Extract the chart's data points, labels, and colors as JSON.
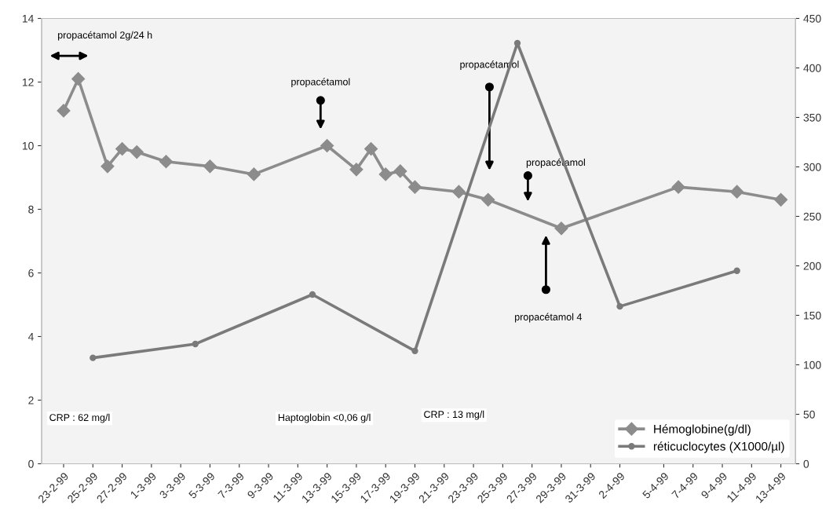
{
  "chart_data": {
    "type": "line",
    "ylim": [
      0,
      14
    ],
    "yticks": [
      0,
      2,
      4,
      6,
      8,
      10,
      12,
      14
    ],
    "y2lim": [
      0,
      450
    ],
    "y2ticks": [
      0,
      50,
      100,
      150,
      200,
      250,
      300,
      350,
      400,
      450
    ],
    "xlim": [
      "1999-02-21T12:00",
      "1999-04-14"
    ],
    "xticks": [
      {
        "value": "1999-02-23",
        "label": "23-2-99"
      },
      {
        "value": "1999-02-25",
        "label": "25-2-99"
      },
      {
        "value": "1999-02-27",
        "label": "27-2-99"
      },
      {
        "value": "1999-03-01",
        "label": "1-3-99"
      },
      {
        "value": "1999-03-03",
        "label": "3-3-99"
      },
      {
        "value": "1999-03-05",
        "label": "5-3-99"
      },
      {
        "value": "1999-03-07",
        "label": "7-3-99"
      },
      {
        "value": "1999-03-09",
        "label": "9-3-99"
      },
      {
        "value": "1999-03-11",
        "label": "11-3-99"
      },
      {
        "value": "1999-03-13",
        "label": "13-3-99"
      },
      {
        "value": "1999-03-15",
        "label": "15-3-99"
      },
      {
        "value": "1999-03-17",
        "label": "17-3-99"
      },
      {
        "value": "1999-03-19",
        "label": "19-3-99"
      },
      {
        "value": "1999-03-21",
        "label": "21-3-99"
      },
      {
        "value": "1999-03-23",
        "label": "23-3-99"
      },
      {
        "value": "1999-03-25",
        "label": "25-3-99"
      },
      {
        "value": "1999-03-27",
        "label": "27-3-99"
      },
      {
        "value": "1999-03-29",
        "label": "29-3-99"
      },
      {
        "value": "1999-03-31",
        "label": "31-3-99"
      },
      {
        "value": "1999-04-02",
        "label": "2-4-99"
      },
      {
        "value": "1999-04-05",
        "label": "5-4-99"
      },
      {
        "value": "1999-04-07",
        "label": "7-4-99"
      },
      {
        "value": "1999-04-09",
        "label": "9-4-99"
      },
      {
        "value": "1999-04-11",
        "label": "11-4-99"
      },
      {
        "value": "1999-04-13",
        "label": "13-4-99"
      }
    ],
    "series": [
      {
        "name": "Hémoglobine(g/dl)",
        "color": "#8c8c8c",
        "marker": "diamond",
        "x": [
          "1999-02-23",
          "1999-02-24",
          "1999-02-26",
          "1999-02-27",
          "1999-02-28",
          "1999-03-02",
          "1999-03-05",
          "1999-03-08",
          "1999-03-13",
          "1999-03-15",
          "1999-03-16",
          "1999-03-17",
          "1999-03-18",
          "1999-03-19",
          "1999-03-22",
          "1999-03-24",
          "1999-03-29",
          "1999-04-06",
          "1999-04-10",
          "1999-04-13"
        ],
        "values": [
          11.1,
          12.1,
          9.35,
          9.9,
          9.8,
          9.5,
          9.35,
          9.1,
          10.0,
          9.25,
          9.9,
          9.1,
          9.2,
          8.7,
          8.55,
          8.3,
          7.4,
          8.7,
          8.55,
          8.3
        ]
      },
      {
        "name": "réticuclocytes (X1000/µl)",
        "color": "#7a7a7a",
        "marker": "circle",
        "axis": "y2",
        "x": [
          "1999-02-25",
          "1999-03-04",
          "1999-03-12",
          "1999-03-19",
          "1999-03-26",
          "1999-04-02",
          "1999-04-10"
        ],
        "values": [
          107,
          121,
          171,
          114,
          425,
          159,
          195
        ]
      }
    ],
    "annotations": [
      "propacétamol 2g/24 h",
      "propacétamol",
      "propacétamol",
      "propacétamol",
      "propacétamol 4",
      "CRP : 62 mg/l",
      "Haptoglobin <0,06 g/l",
      "CRP : 13 mg/l"
    ],
    "legend": "bottom right",
    "grid": false
  }
}
